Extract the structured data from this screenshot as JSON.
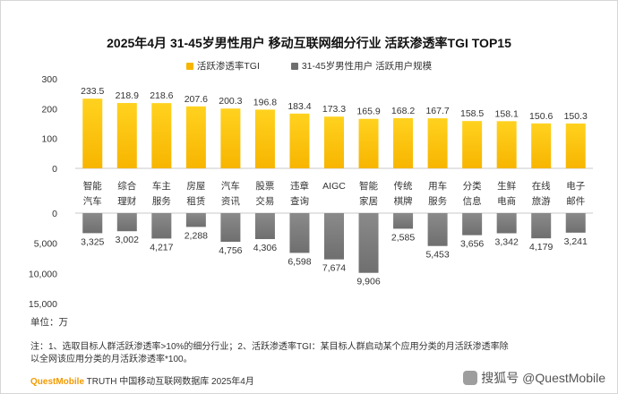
{
  "title": "2025年4月 31-45岁男性用户 移动互联网细分行业 活跃渗透率TGI TOP15",
  "legend": {
    "tgi": "活跃渗透率TGI",
    "users": "31-45岁男性用户 活跃用户规模"
  },
  "colors": {
    "tgi": "#f7b500",
    "users": "#6f6f6f",
    "gridline": "#c8c8c8"
  },
  "chart_data": [
    {
      "type": "bar",
      "name": "活跃渗透率TGI",
      "categories": [
        "智能\n汽车",
        "综合\n理财",
        "车主\n服务",
        "房屋\n租赁",
        "汽车\n资讯",
        "股票\n交易",
        "违章\n查询",
        "AIGC",
        "智能\n家居",
        "传统\n棋牌",
        "用车\n服务",
        "分类\n信息",
        "生鲜\n电商",
        "在线\n旅游",
        "电子\n邮件"
      ],
      "values": [
        233.5,
        218.9,
        218.6,
        207.6,
        200.3,
        196.8,
        183.4,
        173.3,
        165.9,
        168.2,
        167.7,
        158.5,
        158.1,
        150.6,
        150.3
      ],
      "value_labels": [
        "233.5",
        "218.9",
        "218.6",
        "207.6",
        "200.3",
        "196.8",
        "183.4",
        "173.3",
        "165.9",
        "168.2",
        "167.7",
        "158.5",
        "158.1",
        "150.6",
        "150.3"
      ],
      "yticks": [
        "300",
        "200",
        "100",
        "0"
      ],
      "ylim": [
        0,
        300
      ]
    },
    {
      "type": "bar",
      "name": "31-45岁男性用户 活跃用户规模",
      "values": [
        3325,
        3002,
        4217,
        2288,
        4756,
        4306,
        6598,
        7674,
        9906,
        2585,
        5453,
        3656,
        3342,
        4179,
        3241
      ],
      "value_labels": [
        "3,325",
        "3,002",
        "4,217",
        "2,288",
        "4,756",
        "4,306",
        "6,598",
        "7,674",
        "9,906",
        "2,585",
        "5,453",
        "3,656",
        "3,342",
        "4,179",
        "3,241"
      ],
      "yticks": [
        "0",
        "5,000",
        "10,000",
        "15,000"
      ],
      "ylim": [
        0,
        15000
      ],
      "orientation": "downward"
    }
  ],
  "unit_label": "单位：万",
  "notes": [
    "注：1、选取目标人群活跃渗透率>10%的细分行业；2、活跃渗透率TGI：某目标人群启动某个应用分类的月活跃渗透率除",
    "以全网该应用分类的月活跃渗透率*100。"
  ],
  "source": {
    "brand": "QuestMobile",
    "text": " TRUTH 中国移动互联网数据库 2025年4月"
  },
  "watermark": "搜狐号 @QuestMobile"
}
